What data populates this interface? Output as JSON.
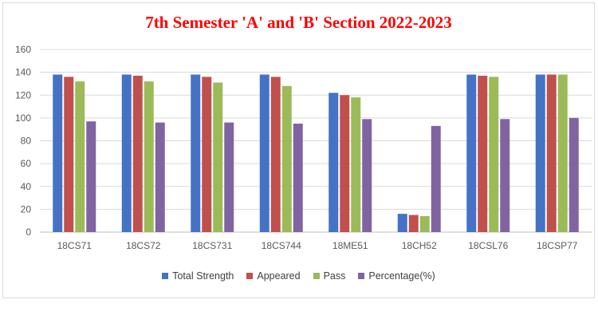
{
  "chart_data": {
    "type": "bar",
    "title": "7th Semester 'A' and 'B' Section 2022-2023",
    "categories": [
      "18CS71",
      "18CS72",
      "18CS731",
      "18CS744",
      "18ME51",
      "18CH52",
      "18CSL76",
      "18CSP77"
    ],
    "series": [
      {
        "name": "Total Strength",
        "color": "#4472c4",
        "values": [
          138,
          138,
          138,
          138,
          122,
          16,
          138,
          138
        ]
      },
      {
        "name": "Appeared",
        "color": "#c0504d",
        "values": [
          136,
          137,
          136,
          136,
          120,
          15,
          137,
          138
        ]
      },
      {
        "name": "Pass",
        "color": "#9bbb59",
        "values": [
          132,
          132,
          131,
          128,
          118,
          14,
          136,
          138
        ]
      },
      {
        "name": "Percentage(%)",
        "color": "#8064a2",
        "values": [
          97,
          96,
          96,
          95,
          99,
          93,
          99,
          100
        ]
      }
    ],
    "yticks": [
      "0",
      "20",
      "40",
      "60",
      "80",
      "100",
      "120",
      "140",
      "160"
    ],
    "ylim": [
      0,
      160
    ],
    "grid": true,
    "legend_position": "bottom"
  }
}
